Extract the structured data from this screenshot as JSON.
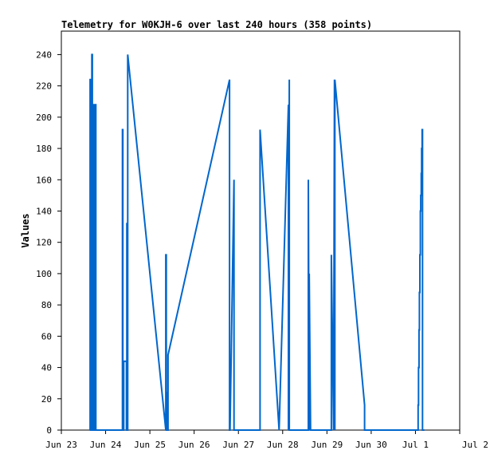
{
  "chart_data": {
    "type": "line",
    "title": "Telemetry for W0KJH-6 over last 240 hours (358 points)",
    "ylabel": "Values",
    "xlabel": "",
    "xlim": [
      0,
      9
    ],
    "ylim": [
      0,
      255
    ],
    "x_ticks": [
      {
        "value": 0,
        "label": "Jun 23"
      },
      {
        "value": 1,
        "label": "Jun 24"
      },
      {
        "value": 2,
        "label": "Jun 25"
      },
      {
        "value": 3,
        "label": "Jun 26"
      },
      {
        "value": 4,
        "label": "Jun 27"
      },
      {
        "value": 5,
        "label": "Jun 28"
      },
      {
        "value": 6,
        "label": "Jun 29"
      },
      {
        "value": 7,
        "label": "Jun 30"
      },
      {
        "value": 8,
        "label": "Jul 1"
      },
      {
        "value": 9,
        "label": "Jul 2"
      }
    ],
    "y_ticks": [
      0,
      20,
      40,
      60,
      80,
      100,
      120,
      140,
      160,
      180,
      200,
      220,
      240
    ],
    "grid": false,
    "line_color": "#0066cc",
    "series": [
      {
        "x": [
          0.65,
          0.65,
          0.66,
          0.66,
          0.67,
          0.67,
          0.68,
          0.68,
          0.69,
          0.69,
          0.7,
          0.7,
          0.71,
          0.71,
          0.72,
          0.72,
          0.73,
          0.73,
          0.74,
          0.74,
          0.75,
          0.75,
          0.76,
          0.76,
          0.77,
          0.77,
          0.78,
          0.78,
          1.38,
          1.38,
          1.39,
          1.39,
          1.41,
          1.41,
          1.47,
          1.47,
          1.48,
          1.48,
          1.49,
          1.49,
          1.5,
          1.5,
          2.36,
          2.36,
          2.37,
          2.37,
          2.39,
          2.39,
          2.4,
          2.4,
          2.41,
          2.41,
          3.8,
          3.8,
          3.81,
          3.81,
          3.9,
          3.9,
          4.48,
          4.48,
          4.49,
          4.49,
          4.92,
          4.92,
          5.13,
          5.13,
          5.13,
          5.13,
          5.15,
          5.15,
          5.58,
          5.58,
          5.6,
          5.6,
          5.63,
          5.63,
          6.1,
          6.1,
          6.15,
          6.15,
          6.17,
          6.17,
          6.18,
          6.18,
          6.85,
          6.85,
          8.06,
          8.06,
          8.07,
          8.07,
          8.08,
          8.08,
          8.09,
          8.09,
          8.1,
          8.1,
          8.11,
          8.11,
          8.12,
          8.12,
          8.13,
          8.13,
          8.14,
          8.14,
          8.15,
          8.15,
          8.16,
          8.16,
          8.2
        ],
        "y": [
          0,
          224,
          224,
          0,
          0,
          224,
          224,
          0,
          0,
          240,
          240,
          0,
          0,
          208,
          208,
          0,
          0,
          208,
          208,
          0,
          0,
          208,
          208,
          0,
          0,
          208,
          208,
          0,
          0,
          192,
          192,
          0,
          0,
          44,
          44,
          0,
          0,
          132,
          132,
          0,
          0,
          240,
          0,
          112,
          112,
          0,
          0,
          24,
          24,
          0,
          0,
          48,
          224,
          0,
          0,
          0,
          160,
          0,
          0,
          0,
          0,
          192,
          0,
          0,
          208,
          0,
          0,
          0,
          224,
          0,
          0,
          160,
          0,
          100,
          0,
          0,
          0,
          112,
          0,
          0,
          224,
          224,
          0,
          224,
          16,
          0,
          0,
          16,
          16,
          40,
          40,
          64,
          64,
          88,
          88,
          112,
          112,
          140,
          140,
          150,
          150,
          164,
          164,
          180,
          180,
          192,
          192,
          0,
          0
        ]
      }
    ]
  }
}
